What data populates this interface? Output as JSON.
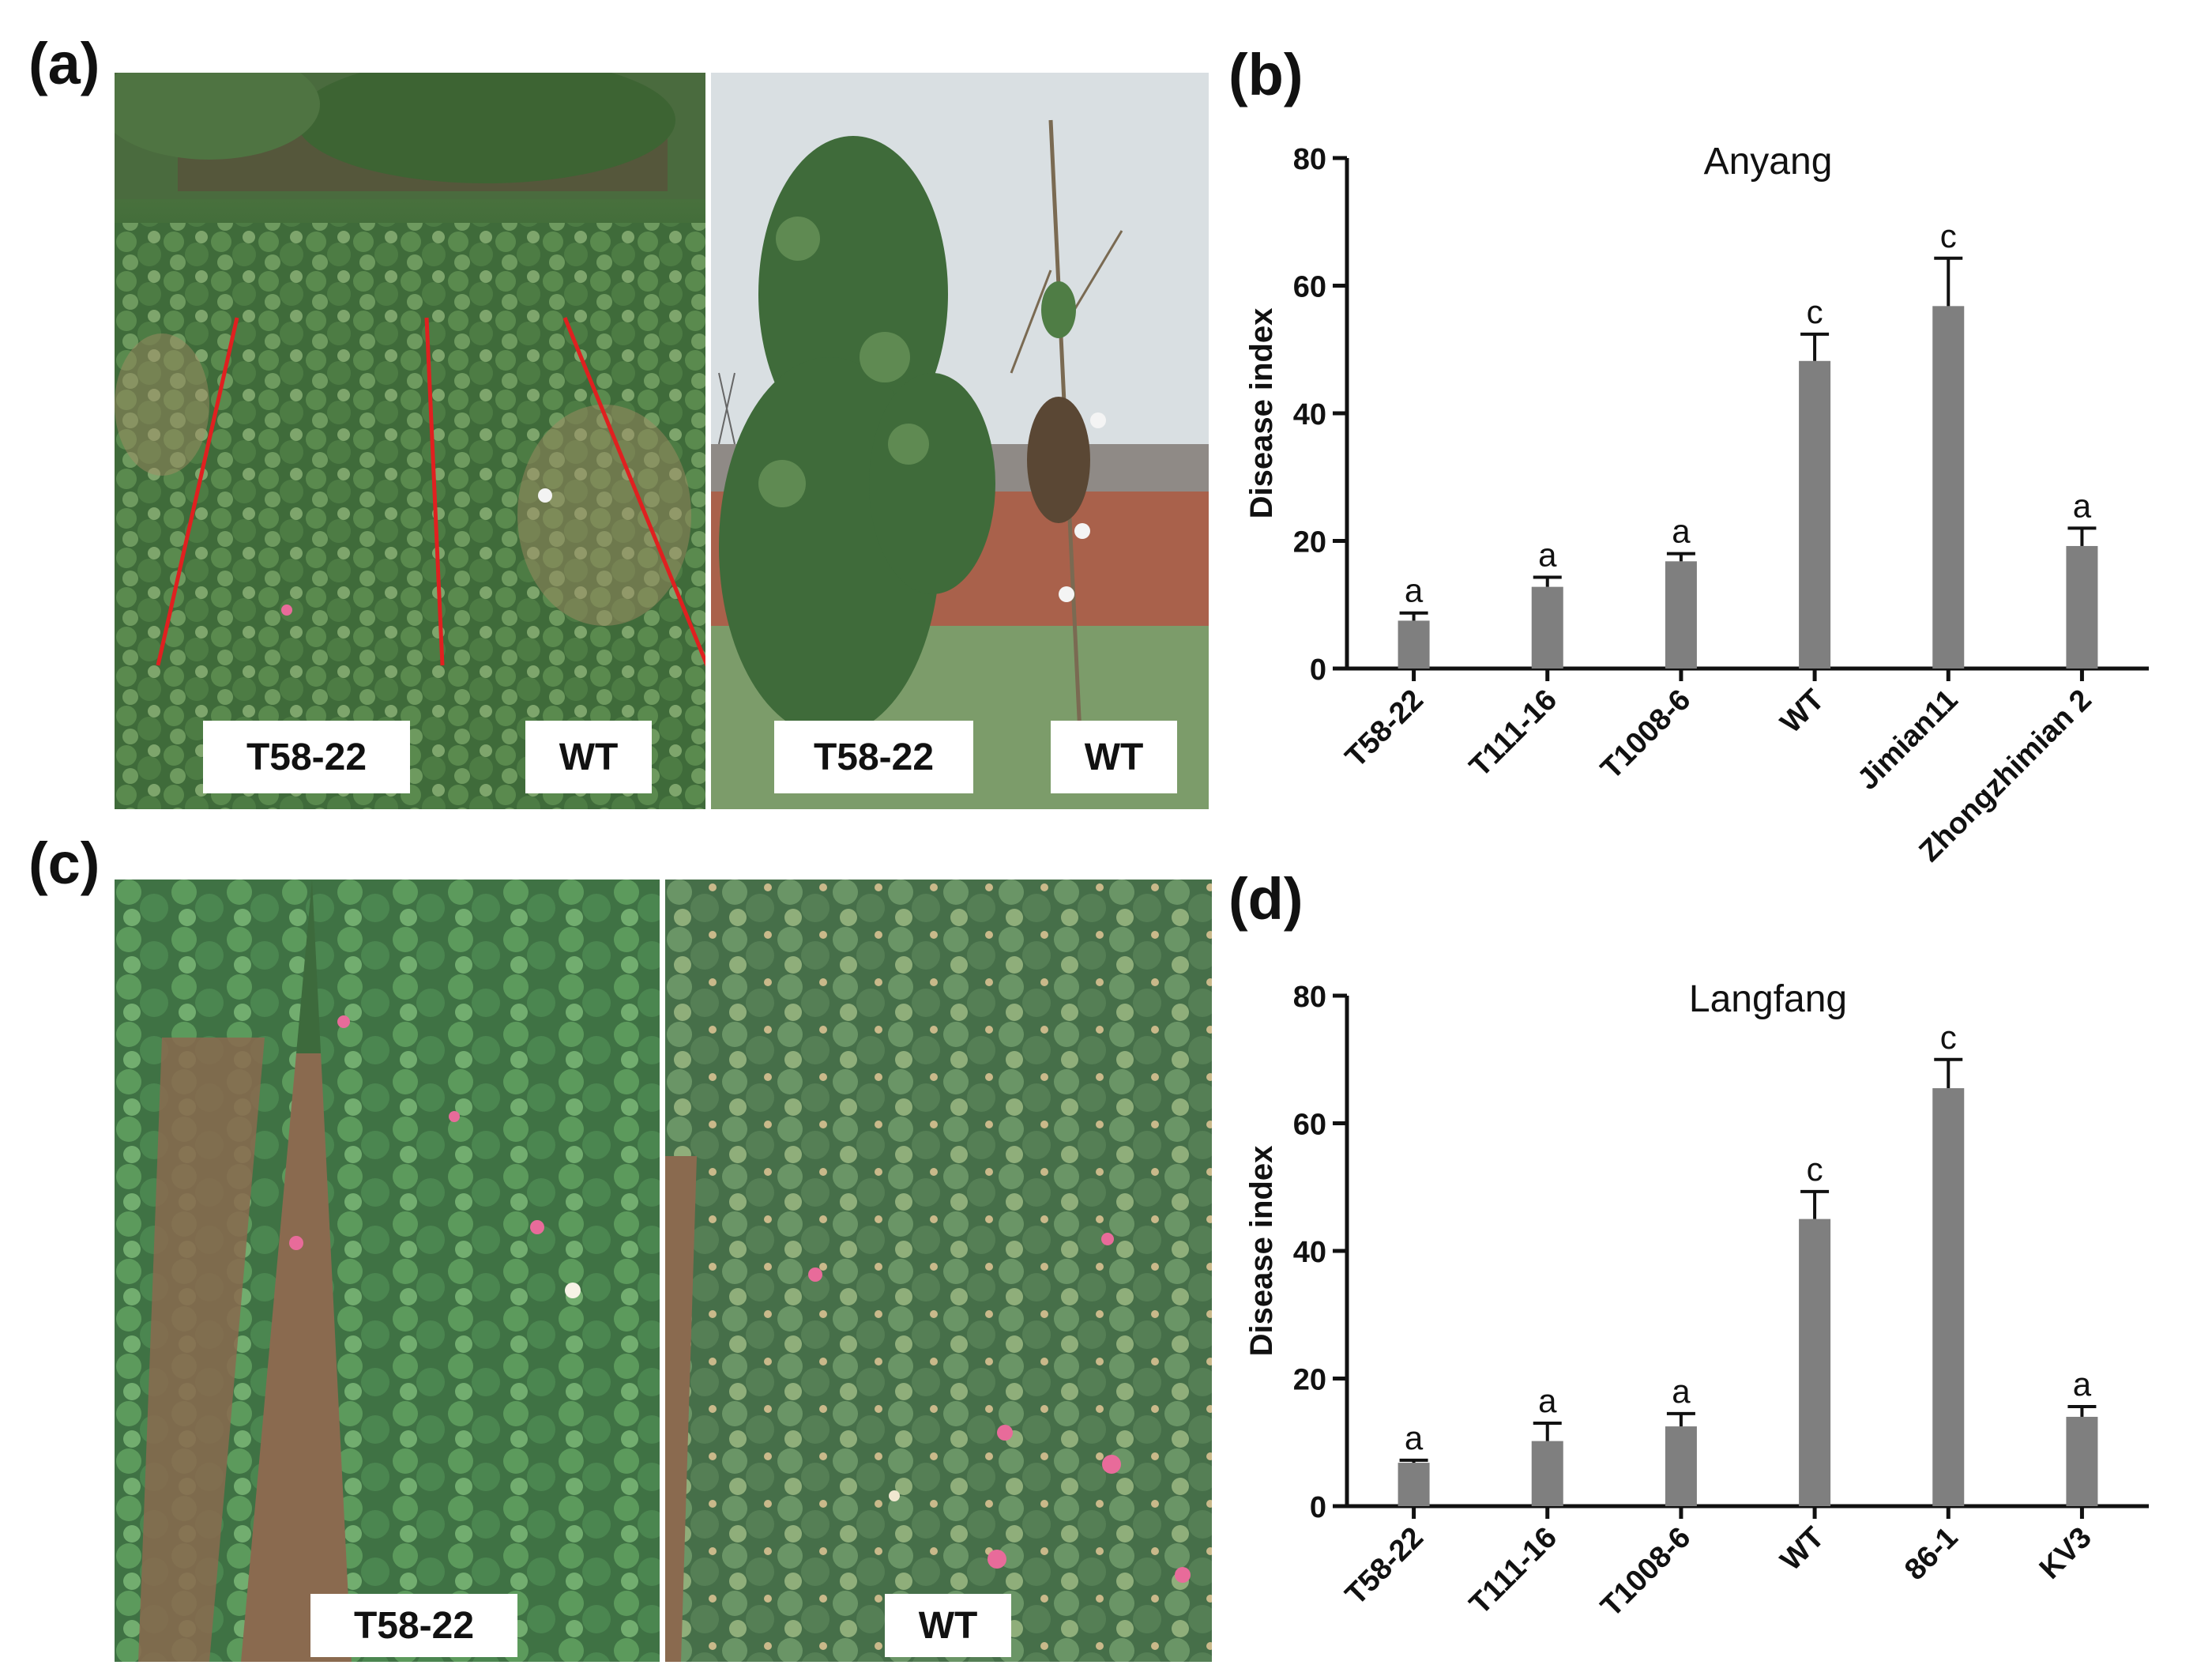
{
  "figure": {
    "panel_a": {
      "letter": "(a)",
      "left_photo_labels": [
        "T58-22",
        "WT"
      ],
      "right_photo_labels": [
        "T58-22",
        "WT"
      ]
    },
    "panel_b": {
      "letter": "(b)"
    },
    "panel_c": {
      "letter": "(c)",
      "photo_labels": [
        "T58-22",
        "WT"
      ]
    },
    "panel_d": {
      "letter": "(d)"
    }
  },
  "colors": {
    "bar": "#7f7f7f",
    "axis": "#111111",
    "foliage_dark": "#2f5a2c",
    "foliage_mid": "#4f7d45",
    "foliage_light": "#8fae7a",
    "soil": "#8a6a4f",
    "sky": "#d6dcdf",
    "wall": "#a55a45",
    "red_line": "#e02020",
    "flower_pink": "#e86b9a"
  },
  "chart_data": [
    {
      "type": "bar",
      "title": "Anyang",
      "ylabel": "Disease index",
      "xlabel": "",
      "ylim": [
        0,
        80
      ],
      "yticks": [
        0,
        20,
        40,
        60,
        80
      ],
      "categories": [
        "T58-22",
        "T111-16",
        "T1008-6",
        "WT",
        "Jimian11",
        "Zhongzhimian 2"
      ],
      "values": [
        7.5,
        12.8,
        16.8,
        48.2,
        56.8,
        19.2
      ],
      "errors": [
        1.2,
        1.5,
        1.2,
        4.2,
        7.5,
        2.8
      ],
      "significance": [
        "a",
        "a",
        "a",
        "c",
        "c",
        "a"
      ]
    },
    {
      "type": "bar",
      "title": "Langfang",
      "ylabel": "Disease index",
      "xlabel": "",
      "ylim": [
        0,
        80
      ],
      "yticks": [
        0,
        20,
        40,
        60,
        80
      ],
      "categories": [
        "T58-22",
        "T111-16",
        "T1008-6",
        "WT",
        "86-1",
        "KV3"
      ],
      "values": [
        6.8,
        10.2,
        12.5,
        45.0,
        65.5,
        14.0
      ],
      "errors": [
        0.4,
        2.8,
        2.0,
        4.3,
        4.5,
        1.6
      ],
      "significance": [
        "a",
        "a",
        "a",
        "c",
        "c",
        "a"
      ]
    }
  ]
}
